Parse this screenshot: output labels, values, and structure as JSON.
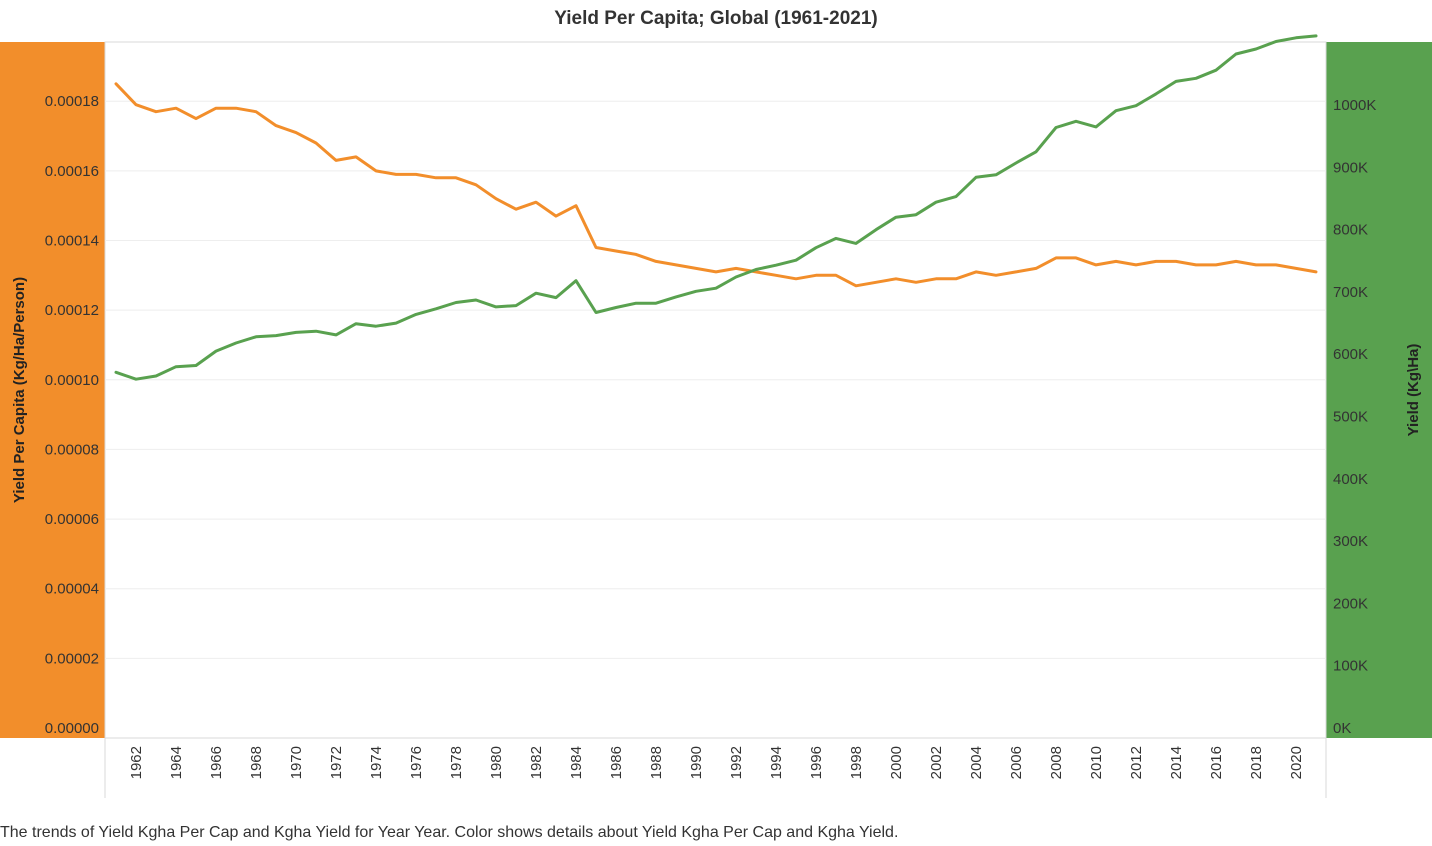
{
  "title": "Yield Per Capita; Global (1961-2021)",
  "caption": "The trends of Yield Kgha Per Cap and Kgha Yield for Year Year.  Color shows details about Yield Kgha Per Cap and Kgha Yield.",
  "colors": {
    "per_capita": "#f28e2b",
    "yield": "#59a14f",
    "left_axis_bg": "#f28e2b",
    "right_axis_bg": "#59a14f",
    "gridline": "#eeeeee"
  },
  "chart_data": {
    "type": "line",
    "title": "Yield Per Capita; Global (1961-2021)",
    "x": [
      1961,
      1962,
      1963,
      1964,
      1965,
      1966,
      1967,
      1968,
      1969,
      1970,
      1971,
      1972,
      1973,
      1974,
      1975,
      1976,
      1977,
      1978,
      1979,
      1980,
      1981,
      1982,
      1983,
      1984,
      1985,
      1986,
      1987,
      1988,
      1989,
      1990,
      1991,
      1992,
      1993,
      1994,
      1995,
      1996,
      1997,
      1998,
      1999,
      2000,
      2001,
      2002,
      2003,
      2004,
      2005,
      2006,
      2007,
      2008,
      2009,
      2010,
      2011,
      2012,
      2013,
      2014,
      2015,
      2016,
      2017,
      2018,
      2019,
      2020,
      2021
    ],
    "x_tick_labels": [
      "1962",
      "1964",
      "1966",
      "1968",
      "1970",
      "1972",
      "1974",
      "1976",
      "1978",
      "1980",
      "1982",
      "1984",
      "1986",
      "1988",
      "1990",
      "1992",
      "1994",
      "1996",
      "1998",
      "2000",
      "2002",
      "2004",
      "2006",
      "2008",
      "2010",
      "2012",
      "2014",
      "2016",
      "2018",
      "2020"
    ],
    "series": [
      {
        "name": "Yield Per Capita (Kg/Ha/Person)",
        "axis": "left",
        "color": "#f28e2b",
        "values": [
          0.000185,
          0.000179,
          0.000177,
          0.000178,
          0.000175,
          0.000178,
          0.000178,
          0.000177,
          0.000173,
          0.000171,
          0.000168,
          0.000163,
          0.000164,
          0.00016,
          0.000159,
          0.000159,
          0.000158,
          0.000158,
          0.000156,
          0.000152,
          0.000149,
          0.000151,
          0.000147,
          0.00015,
          0.000138,
          0.000137,
          0.000136,
          0.000134,
          0.000133,
          0.000132,
          0.000131,
          0.000132,
          0.000131,
          0.00013,
          0.000129,
          0.00013,
          0.00013,
          0.000127,
          0.000128,
          0.000129,
          0.000128,
          0.000129,
          0.000129,
          0.000131,
          0.00013,
          0.000131,
          0.000132,
          0.000135,
          0.000135,
          0.000133,
          0.000134,
          0.000133,
          0.000134,
          0.000134,
          0.000133,
          0.000133,
          0.000134,
          0.000133,
          0.000133,
          0.000132,
          0.000131
        ]
      },
      {
        "name": "Yield (Kg\\Ha)",
        "axis": "right",
        "color": "#59a14f",
        "values": [
          571000,
          560000,
          565000,
          580000,
          582000,
          605000,
          618000,
          628000,
          630000,
          635000,
          637000,
          631000,
          649000,
          645000,
          650000,
          664000,
          673000,
          683000,
          687000,
          676000,
          678000,
          698000,
          691000,
          718000,
          667000,
          675000,
          682000,
          682000,
          692000,
          701000,
          706000,
          724000,
          736000,
          743000,
          751000,
          771000,
          786000,
          778000,
          800000,
          820000,
          824000,
          844000,
          853000,
          884000,
          888000,
          907000,
          925000,
          964000,
          974000,
          965000,
          991000,
          999000,
          1018000,
          1038000,
          1043000,
          1056000,
          1082000,
          1090000,
          1102000,
          1108000,
          1111000
        ]
      }
    ],
    "y_left": {
      "label": "Yield Per Capita (Kg/Ha/Person)",
      "ylim": [
        0,
        0.000195
      ],
      "ticks": [
        0,
        2e-05,
        4e-05,
        6e-05,
        8e-05,
        0.0001,
        0.00012,
        0.00014,
        0.00016,
        0.00018
      ],
      "tick_labels": [
        "0.00000",
        "0.00002",
        "0.00004",
        "0.00006",
        "0.00008",
        "0.00010",
        "0.00012",
        "0.00014",
        "0.00016",
        "0.00018"
      ]
    },
    "y_right": {
      "label": "Yield (Kg\\Ha)",
      "ylim": [
        0,
        1090000
      ],
      "ticks": [
        0,
        100000,
        200000,
        300000,
        400000,
        500000,
        600000,
        700000,
        800000,
        900000,
        1000000
      ],
      "tick_labels": [
        "0K",
        "100K",
        "200K",
        "300K",
        "400K",
        "500K",
        "600K",
        "700K",
        "800K",
        "900K",
        "1000K"
      ]
    },
    "grid": true
  }
}
